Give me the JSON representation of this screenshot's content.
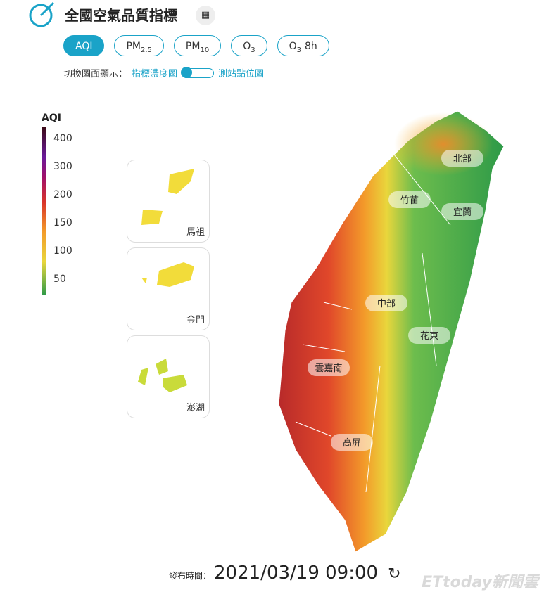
{
  "header": {
    "title": "全國空氣品質指標"
  },
  "tabs": [
    {
      "main": "AQI"
    },
    {
      "main": "PM",
      "sub": "2.5"
    },
    {
      "main": "PM",
      "sub": "10"
    },
    {
      "main": "O",
      "sub": "3"
    },
    {
      "main": "O",
      "sub": "3",
      "suffix": "8h"
    }
  ],
  "toggle": {
    "label": "切換圖面顯示：",
    "left": "指標濃度圖",
    "right": "測站點位圖"
  },
  "legend": {
    "title": "AQI",
    "ticks": [
      400,
      300,
      200,
      150,
      100,
      50
    ]
  },
  "insets": [
    "馬祖",
    "金門",
    "澎湖"
  ],
  "regions": [
    "北部",
    "竹苗",
    "宜蘭",
    "中部",
    "花東",
    "雲嘉南",
    "高屏"
  ],
  "footer": {
    "label": "發布時間：",
    "time": "2021/03/19 09:00"
  },
  "watermark": "ETtoday新聞雲"
}
